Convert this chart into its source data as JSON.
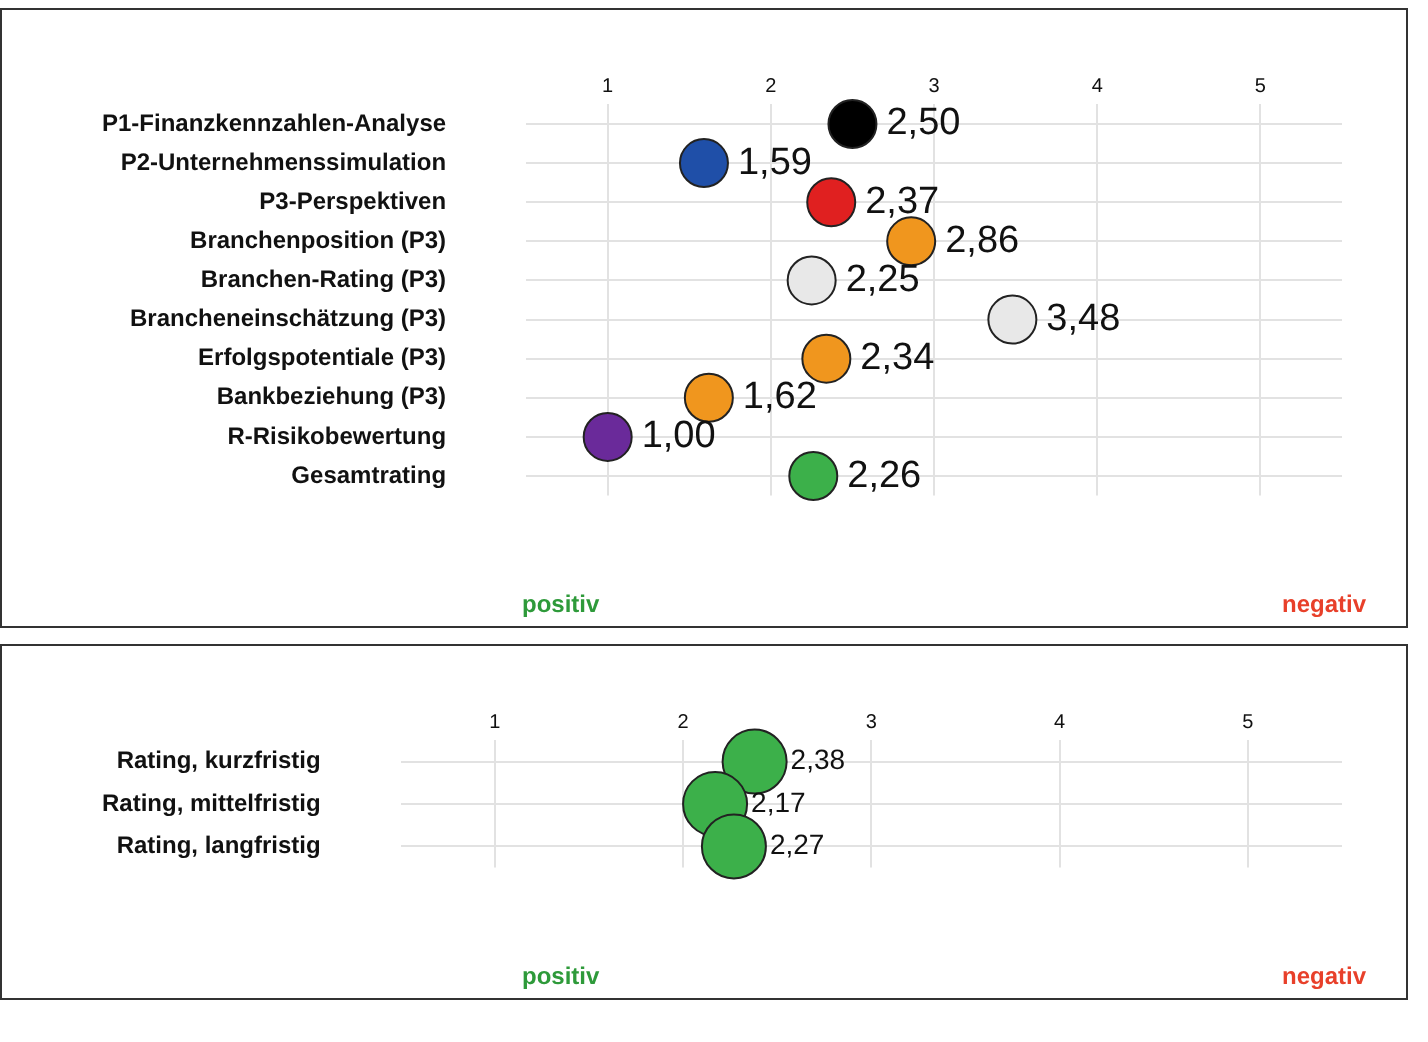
{
  "chart_data": [
    {
      "type": "scatter",
      "orientation": "horizontal",
      "categories": [
        "P1-Finanzkennzahlen-Analyse",
        "P2-Unternehmenssimulation",
        "P3-Perspektiven",
        "Branchenposition (P3)",
        "Branchen-Rating (P3)",
        "Brancheneinschätzung (P3)",
        "Erfolgspotentiale (P3)",
        "Bankbeziehung (P3)",
        "R-Risikobewertung",
        "Gesamtrating"
      ],
      "values": [
        2.5,
        1.59,
        2.37,
        2.86,
        2.25,
        3.48,
        2.34,
        1.62,
        1.0,
        2.26
      ],
      "colors": [
        "#000000",
        "#1f4fa8",
        "#e02020",
        "#f0961e",
        "#e8e8e8",
        "#e8e8e8",
        "#f0961e",
        "#f0961e",
        "#6a2a9a",
        "#3cb04a"
      ],
      "value_labels": [
        "2,50",
        "1,59",
        "2,37",
        "2,86",
        "2,25",
        "3,48",
        "2,34",
        "1,62",
        "1,00",
        "2,26"
      ],
      "xlim": [
        0.5,
        5.5
      ],
      "xticks": [
        1,
        2,
        3,
        4,
        5
      ],
      "grid": true,
      "marker": "circle",
      "legend": false,
      "annotations": [
        "positiv",
        "negativ"
      ]
    },
    {
      "type": "scatter",
      "orientation": "horizontal",
      "categories": [
        "Rating, kurzfristig",
        "Rating, mittelfristig",
        "Rating, langfristig"
      ],
      "values": [
        2.38,
        2.17,
        2.27
      ],
      "colors": [
        "#3cb04a",
        "#3cb04a",
        "#3cb04a"
      ],
      "value_labels": [
        "2,38",
        "2,17",
        "2,27"
      ],
      "xlim": [
        0.5,
        5.5
      ],
      "xticks": [
        1,
        2,
        3,
        4,
        5
      ],
      "grid": true,
      "marker": "circle",
      "legend": false,
      "annotations": [
        "positiv",
        "negativ"
      ]
    }
  ]
}
